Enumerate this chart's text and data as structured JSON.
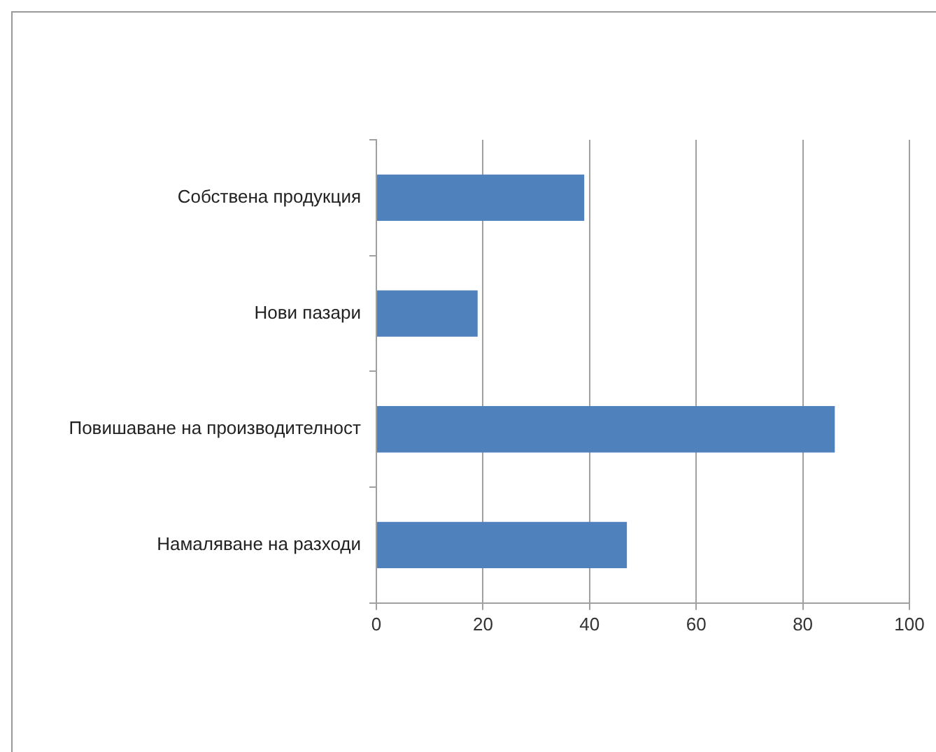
{
  "chart_data": {
    "type": "bar",
    "orientation": "horizontal",
    "categories": [
      "Собствена продукция",
      "Нови пазари",
      "Повишаване на производителност",
      "Намаляване на разходи"
    ],
    "values": [
      39,
      19,
      86,
      47
    ],
    "color": "#4f81bd",
    "xlim": [
      0,
      100
    ],
    "xticks": [
      0,
      20,
      40,
      60,
      80,
      100
    ],
    "grid": "x",
    "legend": false
  }
}
